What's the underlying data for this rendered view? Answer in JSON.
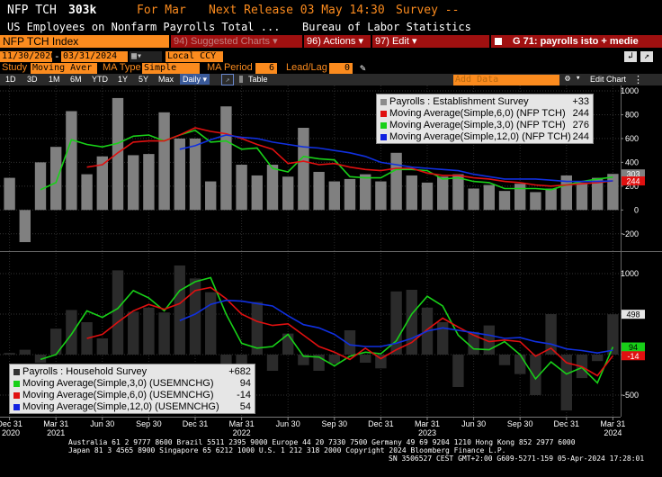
{
  "header": {
    "ticker": "NFP TCH",
    "value": "303k",
    "for_label": "For Mar",
    "next_release": "Next Release 03 May 14:30",
    "survey": "Survey --",
    "description": "US Employees on Nonfarm Payrolls Total ...",
    "source": "Bureau of Labor Statistics"
  },
  "toolbar": {
    "security": "NFP TCH Index",
    "suggested_charts": "94) Suggested Charts ▾",
    "actions": "96) Actions ▾",
    "edit": "97) Edit ▾",
    "right_title": "G 71: payrolls isto + medie"
  },
  "controls": {
    "date_from": "11/30/2020",
    "date_to": "03/31/2024",
    "currency": "Local CCY",
    "study_label": "Study",
    "study_value": "Moving Aver",
    "ma_type_label": "MA Type",
    "ma_type_value": "Simple",
    "ma_period_label": "MA Period",
    "ma_period_value": "6",
    "leadlag_label": "Lead/Lag",
    "leadlag_value": "0",
    "add_data_placeholder": "Add Data",
    "edit_chart": "Edit Chart",
    "periods": [
      "1D",
      "3D",
      "1M",
      "6M",
      "YTD",
      "1Y",
      "5Y",
      "Max"
    ],
    "frequency": "Daily ▾",
    "table": "Table"
  },
  "legend_top": {
    "rows": [
      {
        "name": "Payrolls : Establishment Survey",
        "value": "+33",
        "color": "#8c8c8c"
      },
      {
        "name": "Moving Average(Simple,6,0) (NFP TCH)",
        "value": "244",
        "color": "#e01010"
      },
      {
        "name": "Moving Average(Simple,3,0) (NFP TCH)",
        "value": "276",
        "color": "#18d018"
      },
      {
        "name": "Moving Average(Simple,12,0) (NFP TCH)",
        "value": "244",
        "color": "#1020e0"
      }
    ]
  },
  "legend_bottom": {
    "rows": [
      {
        "name": "Payrolls : Household Survey",
        "value": "+682",
        "color": "#333333"
      },
      {
        "name": "Moving Average(Simple,3,0) (USEMNCHG)",
        "value": "94",
        "color": "#18d018"
      },
      {
        "name": "Moving Average(Simple,6,0) (USEMNCHG)",
        "value": "-14",
        "color": "#e01010"
      },
      {
        "name": "Moving Average(Simple,12,0) (USEMNCHG)",
        "value": "54",
        "color": "#1020e0"
      }
    ]
  },
  "chart_data": [
    {
      "type": "bar",
      "title": "Payrolls : Establishment Survey",
      "ylim": [
        -300,
        1000
      ],
      "yticks": [
        "1000",
        "800",
        "600",
        "400",
        "200",
        "0",
        "-200"
      ],
      "x": [
        "Dec20",
        "Jan21",
        "Feb21",
        "Mar21",
        "Apr21",
        "May21",
        "Jun21",
        "Jul21",
        "Aug21",
        "Sep21",
        "Oct21",
        "Nov21",
        "Dec21",
        "Jan22",
        "Feb22",
        "Mar22",
        "Apr22",
        "May22",
        "Jun22",
        "Jul22",
        "Aug22",
        "Sep22",
        "Oct22",
        "Nov22",
        "Dec22",
        "Jan23",
        "Feb23",
        "Mar23",
        "Apr23",
        "May23",
        "Jun23",
        "Jul23",
        "Aug23",
        "Sep23",
        "Oct23",
        "Nov23",
        "Dec23",
        "Jan24",
        "Feb24",
        "Mar24"
      ],
      "series": [
        {
          "name": "Payrolls : Establishment Survey",
          "values": [
            270,
            -270,
            400,
            530,
            830,
            300,
            450,
            940,
            460,
            470,
            820,
            600,
            600,
            240,
            870,
            380,
            290,
            380,
            280,
            690,
            320,
            240,
            260,
            300,
            240,
            480,
            290,
            230,
            280,
            300,
            180,
            210,
            160,
            220,
            150,
            180,
            290,
            230,
            270,
            303
          ]
        },
        {
          "name": "Moving Average(Simple,3,0) (NFP TCH)",
          "values": [
            null,
            null,
            170,
            230,
            590,
            550,
            530,
            560,
            620,
            630,
            580,
            630,
            670,
            570,
            580,
            510,
            520,
            350,
            320,
            450,
            430,
            420,
            280,
            270,
            270,
            340,
            340,
            330,
            260,
            270,
            240,
            230,
            180,
            180,
            180,
            170,
            210,
            240,
            260,
            276
          ]
        },
        {
          "name": "Moving Average(Simple,6,0) (NFP TCH)",
          "values": [
            null,
            null,
            null,
            null,
            null,
            360,
            380,
            480,
            570,
            580,
            580,
            630,
            690,
            660,
            640,
            600,
            550,
            510,
            390,
            410,
            380,
            390,
            360,
            340,
            330,
            350,
            350,
            310,
            290,
            290,
            270,
            260,
            240,
            230,
            210,
            200,
            210,
            220,
            230,
            244
          ]
        },
        {
          "name": "Moving Average(Simple,12,0) (NFP TCH)",
          "values": [
            null,
            null,
            null,
            null,
            null,
            null,
            null,
            null,
            null,
            null,
            null,
            510,
            540,
            590,
            630,
            610,
            600,
            570,
            550,
            530,
            520,
            500,
            480,
            450,
            400,
            380,
            360,
            350,
            340,
            330,
            300,
            280,
            260,
            260,
            260,
            250,
            240,
            240,
            240,
            244
          ]
        }
      ],
      "last_labels": [
        "303",
        "244"
      ]
    },
    {
      "type": "bar",
      "title": "Payrolls : Household Survey",
      "ylim": [
        -700,
        1200
      ],
      "yticks": [
        "1000",
        "500",
        "0",
        "-500"
      ],
      "x": [
        "Dec20",
        "Jan21",
        "Feb21",
        "Mar21",
        "Apr21",
        "May21",
        "Jun21",
        "Jul21",
        "Aug21",
        "Sep21",
        "Oct21",
        "Nov21",
        "Dec21",
        "Jan22",
        "Feb22",
        "Mar22",
        "Apr22",
        "May22",
        "Jun22",
        "Jul22",
        "Aug22",
        "Sep22",
        "Oct22",
        "Nov22",
        "Dec22",
        "Jan23",
        "Feb23",
        "Mar23",
        "Apr23",
        "May23",
        "Jun23",
        "Jul23",
        "Aug23",
        "Sep23",
        "Oct23",
        "Nov23",
        "Dec23",
        "Jan24",
        "Feb24",
        "Mar24"
      ],
      "series": [
        {
          "name": "Payrolls : Household Survey",
          "values": [
            20,
            60,
            -100,
            320,
            550,
            400,
            200,
            1040,
            530,
            580,
            520,
            1100,
            940,
            770,
            -300,
            -150,
            650,
            -200,
            260,
            -130,
            -200,
            -110,
            300,
            -100,
            -170,
            780,
            800,
            580,
            400,
            -400,
            280,
            360,
            -130,
            -240,
            -500,
            500,
            -690,
            -290,
            -80,
            498
          ]
        },
        {
          "name": "Moving Average(Simple,3,0) (USEMNCHG)",
          "values": [
            null,
            null,
            -60,
            0,
            250,
            540,
            460,
            570,
            790,
            700,
            540,
            790,
            900,
            950,
            500,
            140,
            80,
            100,
            250,
            -20,
            -30,
            -140,
            -20,
            30,
            10,
            170,
            500,
            720,
            600,
            240,
            70,
            60,
            160,
            0,
            -300,
            -90,
            -240,
            -160,
            -350,
            94
          ]
        },
        {
          "name": "Moving Average(Simple,6,0) (USEMNCHG)",
          "values": [
            null,
            null,
            null,
            null,
            null,
            200,
            250,
            400,
            540,
            620,
            560,
            630,
            790,
            830,
            690,
            500,
            410,
            360,
            380,
            240,
            100,
            30,
            -60,
            80,
            -50,
            60,
            150,
            310,
            450,
            340,
            240,
            160,
            180,
            160,
            -20,
            80,
            -100,
            -150,
            -260,
            -14
          ]
        },
        {
          "name": "Moving Average(Simple,12,0) (USEMNCHG)",
          "values": [
            null,
            null,
            null,
            null,
            null,
            null,
            null,
            null,
            null,
            null,
            null,
            420,
            500,
            620,
            670,
            660,
            630,
            600,
            480,
            370,
            330,
            250,
            120,
            100,
            100,
            140,
            200,
            290,
            330,
            300,
            270,
            240,
            200,
            210,
            160,
            130,
            70,
            50,
            20,
            54
          ]
        }
      ],
      "last_labels": [
        "498",
        "94",
        "-14"
      ]
    }
  ],
  "x_axis": {
    "ticks": [
      "Dec 31",
      "Mar 31",
      "Jun 30",
      "Sep 30",
      "Dec 31",
      "Mar 31",
      "Jun 30",
      "Sep 30",
      "Dec 31",
      "Mar 31",
      "Jun 30",
      "Sep 30",
      "Dec 31",
      "Mar 31"
    ],
    "years": [
      "2020",
      "2021",
      "2022",
      "2023",
      "2024"
    ]
  },
  "footer": {
    "line1": "Australia 61 2 9777 8600 Brazil 5511 2395 9000 Europe 44 20 7330 7500 Germany 49 69 9204 1210 Hong Kong 852 2977 6000",
    "line2": "Japan 81 3 4565 8900       Singapore 65 6212 1000        U.S. 1 212 318 2000         Copyright 2024 Bloomberg Finance L.P.",
    "line3": "SN 3506527 CEST GMT+2:00 G609-5271-159 05-Apr-2024 17:28:01"
  }
}
